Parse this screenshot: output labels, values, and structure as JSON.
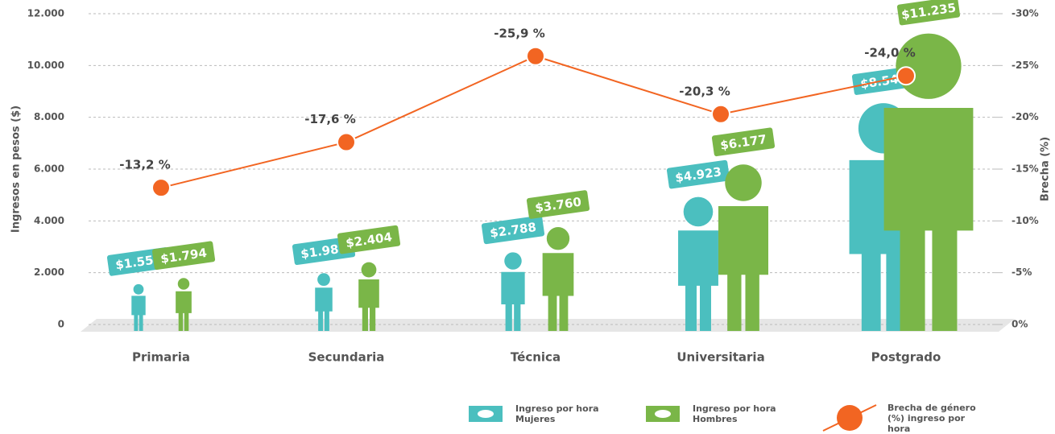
{
  "chart_data": {
    "type": "pictogram-line",
    "ylabel": "Ingresos en pesos ($)",
    "y2label": "Brecha (%)",
    "categories": [
      "Primaria",
      "Secundaria",
      "Técnica",
      "Universitaria",
      "Postgrado"
    ],
    "ylim": [
      0,
      12000
    ],
    "yticks": [
      0,
      {
        "value": 2000,
        "label": "2.000"
      },
      {
        "value": 4000,
        "label": "4.000"
      },
      {
        "value": 6000,
        "label": "6.000"
      },
      {
        "value": 8000,
        "label": "8.000"
      },
      {
        "value": 10000,
        "label": "10.000"
      },
      {
        "value": 12000,
        "label": "12.000"
      }
    ],
    "y2lim": [
      0,
      -30
    ],
    "y2ticks": [
      {
        "value": 0,
        "label": "0%"
      },
      {
        "value": -5,
        "label": "-5%"
      },
      {
        "value": -10,
        "label": "-10%"
      },
      {
        "value": -15,
        "label": "-15%"
      },
      {
        "value": -20,
        "label": "-20%"
      },
      {
        "value": -25,
        "label": "-25%"
      },
      {
        "value": -30,
        "label": "-30%"
      }
    ],
    "grid": true,
    "series": [
      {
        "name": "Ingreso por hora Mujeres",
        "color": "#4bbfbf",
        "values": [
          1557,
          1981,
          2788,
          4923,
          8544
        ],
        "value_labels": [
          "$1.557",
          "$1.981",
          "$2.788",
          "$4.923",
          "$8.544"
        ]
      },
      {
        "name": "Ingreso por hora Hombres",
        "color": "#7ab648",
        "values": [
          1794,
          2404,
          3760,
          6177,
          11235
        ],
        "value_labels": [
          "$1.794",
          "$2.404",
          "$3.760",
          "$6.177",
          "$11.235"
        ]
      },
      {
        "name": "Brecha de género (%) ingreso por hora",
        "color": "#f26522",
        "axis": "y2",
        "values": [
          -13.2,
          -17.6,
          -25.9,
          -20.3,
          -24.0
        ],
        "value_labels": [
          "-13,2 %",
          "-17,6 %",
          "-25,9 %",
          "-20,3 %",
          "-24,0 %"
        ]
      }
    ]
  }
}
